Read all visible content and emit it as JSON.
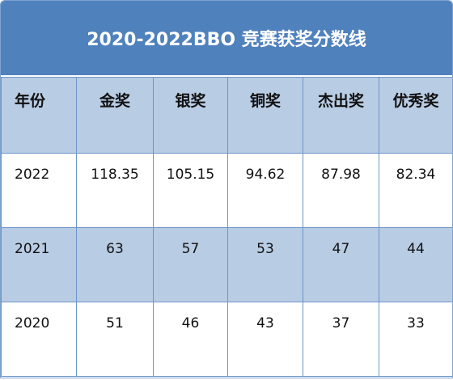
{
  "title": "2020-2022BBO 竞赛获奖分数线",
  "table": {
    "header": [
      "年份",
      "金奖",
      "银奖",
      "铜奖",
      "杰出奖",
      "优秀奖"
    ],
    "rows": [
      [
        "2022",
        "118.35",
        "105.15",
        "94.62",
        "87.98",
        "82.34"
      ],
      [
        "2021",
        "63",
        "57",
        "53",
        "47",
        "44"
      ],
      [
        "2020",
        "51",
        "46",
        "43",
        "37",
        "33"
      ]
    ]
  }
}
